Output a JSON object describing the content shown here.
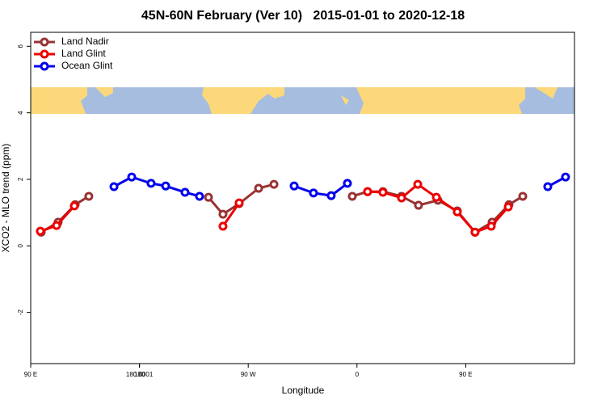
{
  "chart_data": {
    "type": "line",
    "title": "45N-60N February (Ver 10)   2015-01-01 to 2020-12-18",
    "x_label": "Longitude",
    "y_label": "XCO2 - MLO trend (ppm)",
    "xlim": [
      90,
      540
    ],
    "xticks": [
      {
        "value": 90,
        "label": "90 E"
      },
      180,
      {
        "value": 270,
        "label": "90 W"
      },
      {
        "value": 360,
        "label": "0"
      },
      {
        "value": 450,
        "label": "90 E"
      },
      180.0001
    ],
    "ylim": [
      -3.54,
      6.42
    ],
    "yticks": [
      -2,
      0,
      2,
      4,
      6
    ],
    "legend_position": "top-left",
    "series": [
      {
        "name": "Land Nadir",
        "color": "#993333",
        "x": [
          98.7,
          112.7,
          126.8,
          138.1,
          null,
          237.1,
          249.1,
          262.5,
          278.6,
          291.3,
          null,
          356.1,
          368.8,
          381.5,
          396.9,
          410.9,
          427.0,
          443.0,
          457.7,
          471.8,
          485.8,
          497.2
        ],
        "values": [
          0.41,
          0.71,
          1.24,
          1.49,
          null,
          1.46,
          0.95,
          1.27,
          1.73,
          1.85,
          null,
          1.49,
          1.63,
          1.63,
          1.49,
          1.22,
          1.37,
          1.05,
          0.41,
          0.71,
          1.24,
          1.49
        ]
      },
      {
        "name": "Land Glint",
        "color": "#ee0000",
        "x": [
          98.0,
          111.4,
          126.1,
          null,
          249.1,
          262.5,
          null,
          368.8,
          381.5,
          396.9,
          410.3,
          425.7,
          443.0,
          457.7,
          471.1,
          485.2
        ],
        "values": [
          0.44,
          0.61,
          1.2,
          null,
          0.59,
          1.29,
          null,
          1.63,
          1.61,
          1.44,
          1.85,
          1.46,
          1.02,
          0.41,
          0.59,
          1.17
        ]
      },
      {
        "name": "Ocean Glint",
        "color": "#0000ee",
        "x": [
          158.9,
          173.6,
          189.6,
          201.7,
          217.7,
          229.7,
          null,
          308.0,
          324.0,
          338.7,
          352.1,
          null,
          517.9,
          532.6
        ],
        "values": [
          1.78,
          2.07,
          1.88,
          1.8,
          1.61,
          1.49,
          null,
          1.8,
          1.59,
          1.51,
          1.88,
          null,
          1.78,
          2.07
        ]
      }
    ]
  }
}
